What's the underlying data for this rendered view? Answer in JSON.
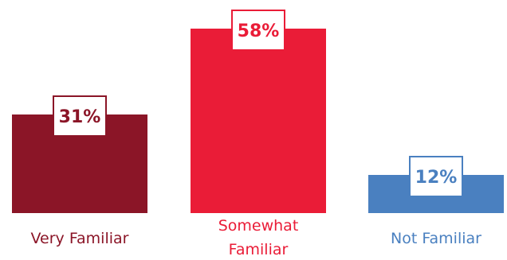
{
  "chart_data": {
    "type": "bar",
    "categories": [
      "Very Familiar",
      "Somewhat Familiar",
      "Not Familiar"
    ],
    "category_lines": [
      [
        "Very Familiar"
      ],
      [
        "Somewhat",
        "Familiar"
      ],
      [
        "Not Familiar"
      ]
    ],
    "values": [
      31,
      58,
      12
    ],
    "value_labels": [
      "31%",
      "58%",
      "12%"
    ],
    "colors": [
      "#8b1527",
      "#ea1c37",
      "#4a80c0"
    ],
    "label_colors": [
      "#8b1527",
      "#ea1c37",
      "#4a80c0"
    ],
    "ylim": [
      0,
      100
    ],
    "title": "",
    "xlabel": "",
    "ylabel": ""
  }
}
